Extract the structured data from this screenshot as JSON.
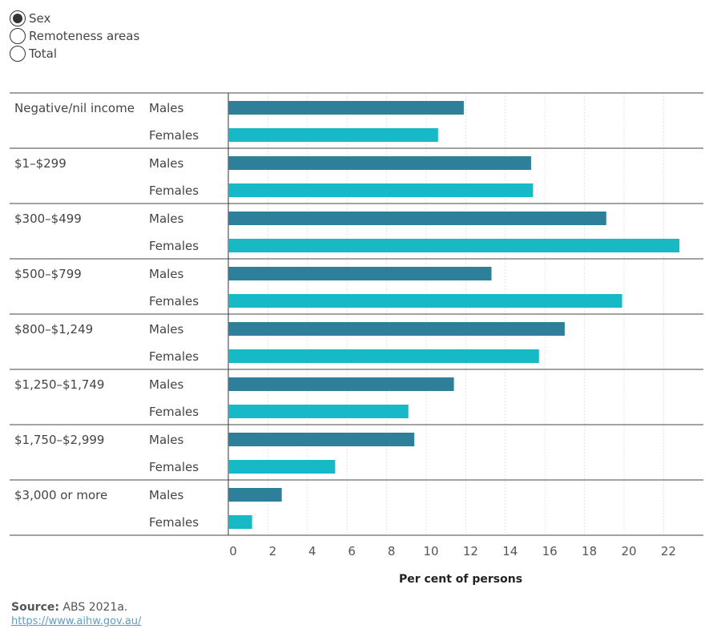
{
  "controls": {
    "options": [
      {
        "label": "Sex",
        "checked": true
      },
      {
        "label": "Remoteness areas",
        "checked": false
      },
      {
        "label": "Total",
        "checked": false
      }
    ]
  },
  "colors": {
    "males": "#2e7f99",
    "females": "#17b9c6"
  },
  "chart_data": {
    "type": "bar",
    "orientation": "horizontal",
    "xlabel": "Per cent of persons",
    "xlim": [
      0,
      23.5
    ],
    "xticks": [
      0,
      2,
      4,
      6,
      8,
      10,
      12,
      14,
      16,
      18,
      20,
      22
    ],
    "categories": [
      "Negative/nil income",
      "$1–$299",
      "$300–$499",
      "$500–$799",
      "$800–$1,249",
      "$1,250–$1,749",
      "$1,750–$2,999",
      "$3,000 or more"
    ],
    "series": [
      {
        "name": "Males",
        "values": [
          11.9,
          15.3,
          19.1,
          13.3,
          17.0,
          11.4,
          9.4,
          2.7
        ]
      },
      {
        "name": "Females",
        "values": [
          10.6,
          15.4,
          22.8,
          19.9,
          15.7,
          9.1,
          5.4,
          1.2
        ]
      }
    ],
    "grid": true
  },
  "footer": {
    "source_label": "Source:",
    "source_text": "ABS 2021a.",
    "url": "https://www.aihw.gov.au/"
  }
}
